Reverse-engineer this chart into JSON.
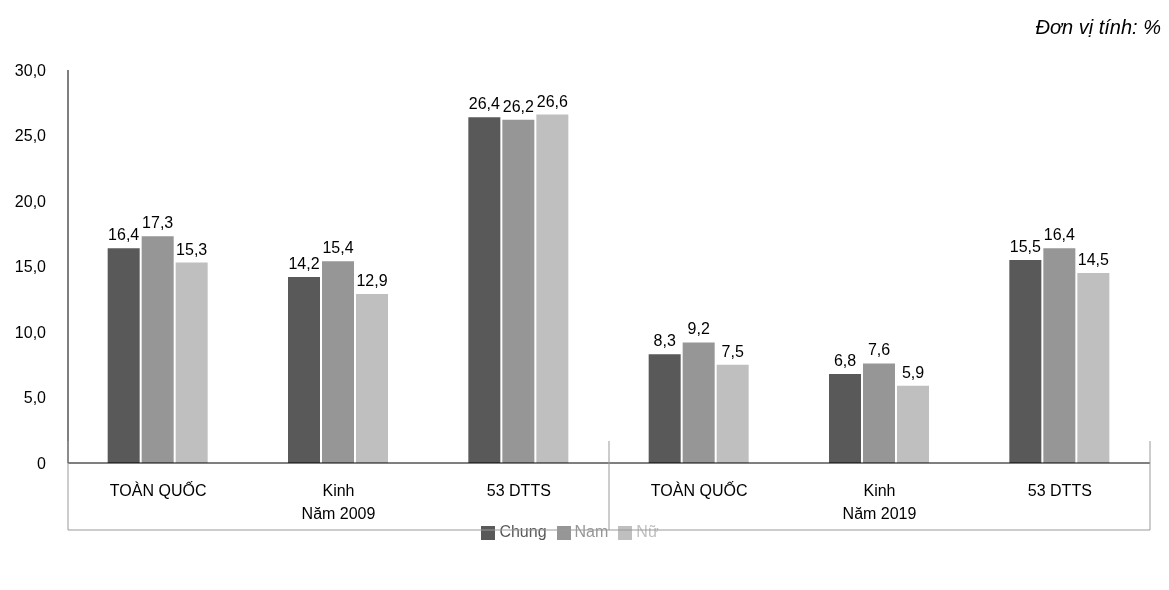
{
  "chart_data": {
    "type": "bar",
    "categories": [
      "TOÀN QUỐC",
      "Kinh",
      "53 DTTS",
      "TOÀN QUỐC",
      "Kinh",
      "53 DTTS"
    ],
    "series": [
      {
        "name": "Chung",
        "color": "#595959",
        "values": [
          16.4,
          14.2,
          26.4,
          8.3,
          6.8,
          15.5
        ],
        "value_labels": [
          "16,4",
          "14,2",
          "26,4",
          "8,3",
          "6,8",
          "15,5"
        ]
      },
      {
        "name": "Nam",
        "color": "#969696",
        "values": [
          17.3,
          15.4,
          26.2,
          9.2,
          7.6,
          16.4
        ],
        "value_labels": [
          "17,3",
          "15,4",
          "26,2",
          "9,2",
          "7,6",
          "16,4"
        ]
      },
      {
        "name": "Nữ",
        "color": "#bfbfbf",
        "values": [
          15.3,
          12.9,
          26.6,
          7.5,
          5.9,
          14.5
        ],
        "value_labels": [
          "15,3",
          "12,9",
          "26,6",
          "7,5",
          "5,9",
          "14,5"
        ]
      }
    ],
    "ylim": [
      0,
      30
    ],
    "yticks": [
      0,
      {
        "value": 5,
        "label": "5,0"
      },
      {
        "value": 10,
        "label": "10,0"
      },
      {
        "value": 15,
        "label": "15,0"
      },
      {
        "value": 20,
        "label": "20,0"
      },
      {
        "value": 25,
        "label": "25,0"
      },
      {
        "value": 30,
        "label": "30,0"
      }
    ],
    "annotations": [
      "Đơn vị tính: %",
      "Năm 2009",
      "Năm 2019"
    ],
    "grid": false,
    "legend": "bottom"
  }
}
